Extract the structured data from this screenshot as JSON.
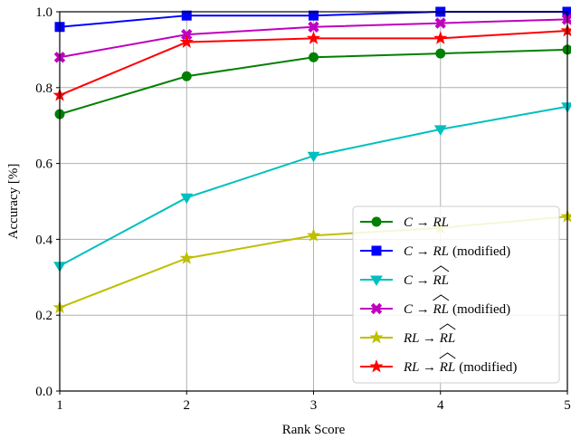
{
  "chart_data": {
    "type": "line",
    "title": "",
    "xlabel": "Rank Score",
    "ylabel": "Accuracy [%]",
    "x": [
      1,
      2,
      3,
      4,
      5
    ],
    "xlim": [
      1,
      5
    ],
    "ylim": [
      0.0,
      1.0
    ],
    "xticks": [
      "1",
      "2",
      "3",
      "4",
      "5"
    ],
    "yticks": [
      "0.0",
      "0.2",
      "0.4",
      "0.6",
      "0.8",
      "1.0"
    ],
    "grid": true,
    "legend_position": "lower-right",
    "series": [
      {
        "name": "C → RL",
        "label_math": "C → RL",
        "label_suffix": "",
        "hat": false,
        "color": "#008000",
        "marker": "circle",
        "values": [
          0.73,
          0.83,
          0.88,
          0.89,
          0.9
        ]
      },
      {
        "name": "C → RL (modified)",
        "label_math": "C → RL",
        "label_suffix": "(modified)",
        "hat": false,
        "color": "#0000ff",
        "marker": "square",
        "values": [
          0.96,
          0.99,
          0.99,
          1.0,
          1.0
        ]
      },
      {
        "name": "C → R̂L",
        "label_math": "C → RL",
        "label_suffix": "",
        "hat": true,
        "color": "#00bfbf",
        "marker": "triangle-down",
        "values": [
          0.33,
          0.51,
          0.62,
          0.69,
          0.75
        ]
      },
      {
        "name": "C → R̂L (modified)",
        "label_math": "C → RL",
        "label_suffix": "(modified)",
        "hat": true,
        "color": "#bf00bf",
        "marker": "x-filled",
        "values": [
          0.88,
          0.94,
          0.96,
          0.97,
          0.98
        ]
      },
      {
        "name": "RL → R̂L",
        "label_math": "RL → RL",
        "label_suffix": "",
        "hat": true,
        "color": "#bfbf00",
        "marker": "star",
        "values": [
          0.22,
          0.35,
          0.41,
          0.43,
          0.46
        ]
      },
      {
        "name": "RL → R̂L (modified)",
        "label_math": "RL → RL",
        "label_suffix": "(modified)",
        "hat": true,
        "color": "#ff0000",
        "marker": "star",
        "values": [
          0.78,
          0.92,
          0.93,
          0.93,
          0.95
        ]
      }
    ]
  }
}
